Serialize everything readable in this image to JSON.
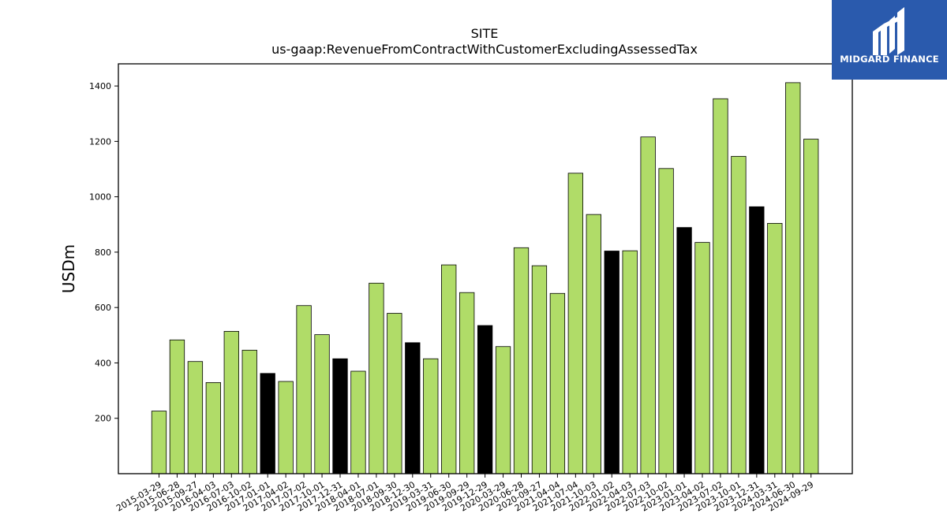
{
  "chart_data": {
    "type": "bar",
    "title": "SITE",
    "subtitle": "us-gaap:RevenueFromContractWithCustomerExcludingAssessedTax",
    "xlabel": "",
    "ylabel": "USDm",
    "ylim": [
      0,
      1480
    ],
    "yticks": [
      200,
      400,
      600,
      800,
      1000,
      1200,
      1400
    ],
    "grid": false,
    "colors": {
      "default": "#b0dc68",
      "highlight": "#000000",
      "edge": "#000000"
    },
    "categories": [
      "2015-03-29",
      "2015-06-28",
      "2015-09-27",
      "2016-04-03",
      "2016-07-03",
      "2016-10-02",
      "2017-01-01",
      "2017-04-02",
      "2017-07-02",
      "2017-10-01",
      "2017-12-31",
      "2018-04-01",
      "2018-07-01",
      "2018-09-30",
      "2018-12-30",
      "2019-03-31",
      "2019-06-30",
      "2019-09-29",
      "2019-12-29",
      "2020-03-29",
      "2020-06-28",
      "2020-09-27",
      "2021-04-04",
      "2021-07-04",
      "2021-10-03",
      "2022-01-02",
      "2022-04-03",
      "2022-07-03",
      "2022-10-02",
      "2023-01-01",
      "2023-04-02",
      "2023-07-02",
      "2023-10-01",
      "2023-12-31",
      "2024-03-31",
      "2024-06-30",
      "2024-09-29"
    ],
    "values": [
      226,
      483,
      405,
      329,
      514,
      446,
      362,
      333,
      607,
      502,
      415,
      370,
      688,
      579,
      473,
      415,
      754,
      654,
      535,
      459,
      816,
      751,
      651,
      1085,
      936,
      804,
      805,
      1216,
      1102,
      889,
      835,
      1354,
      1146,
      964,
      904,
      1412,
      1208
    ],
    "highlight": [
      false,
      false,
      false,
      false,
      false,
      false,
      true,
      false,
      false,
      false,
      true,
      false,
      false,
      false,
      true,
      false,
      false,
      false,
      true,
      false,
      false,
      false,
      false,
      false,
      false,
      true,
      false,
      false,
      false,
      true,
      false,
      false,
      false,
      true,
      false,
      false,
      false
    ]
  },
  "logo": {
    "text": "MIDGARD FINANCE",
    "background": "#2a5aad",
    "icon": "midgard-logo-icon"
  }
}
